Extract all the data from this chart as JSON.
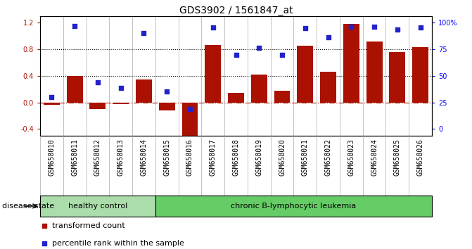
{
  "title": "GDS3902 / 1561847_at",
  "categories": [
    "GSM658010",
    "GSM658011",
    "GSM658012",
    "GSM658013",
    "GSM658014",
    "GSM658015",
    "GSM658016",
    "GSM658017",
    "GSM658018",
    "GSM658019",
    "GSM658020",
    "GSM658021",
    "GSM658022",
    "GSM658023",
    "GSM658024",
    "GSM658025",
    "GSM658026"
  ],
  "transformed_count": [
    -0.03,
    0.4,
    -0.1,
    -0.02,
    0.35,
    -0.12,
    -0.5,
    0.87,
    0.15,
    0.42,
    0.18,
    0.85,
    0.46,
    1.18,
    0.92,
    0.76,
    0.83
  ],
  "percentile_rank": [
    0.08,
    1.15,
    0.3,
    0.22,
    1.05,
    0.17,
    -0.1,
    1.13,
    0.72,
    0.82,
    0.72,
    1.12,
    0.98,
    1.14,
    1.14,
    1.1,
    1.13
  ],
  "bar_color": "#aa1100",
  "dot_color": "#2222cc",
  "healthy_control_count": 5,
  "group1_label": "healthy control",
  "group2_label": "chronic B-lymphocytic leukemia",
  "group1_color": "#aaddaa",
  "group2_color": "#66cc66",
  "ylim_left": [
    -0.5,
    1.3
  ],
  "yticks_left": [
    -0.4,
    0.0,
    0.4,
    0.8,
    1.2
  ],
  "ytick_labels_right": [
    "0",
    "25",
    "50",
    "75",
    "100%"
  ],
  "right_ticks_left_coords": [
    -0.4,
    0.0,
    0.4,
    0.8,
    1.2
  ],
  "hlines": [
    0.4,
    0.8
  ],
  "background_color": "#ffffff",
  "legend_transformed": "transformed count",
  "legend_percentile": "percentile rank within the sample",
  "disease_state_label": "disease state",
  "title_fontsize": 10,
  "tick_fontsize": 7,
  "label_fontsize": 8
}
